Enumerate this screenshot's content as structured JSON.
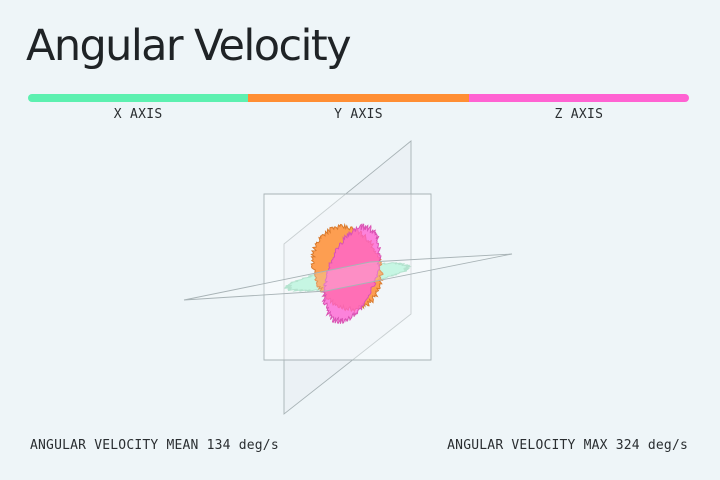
{
  "title": "Angular Velocity",
  "axes": [
    {
      "label": "X AXIS",
      "color": "#5cf0b0"
    },
    {
      "label": "Y AXIS",
      "color": "#ff8e34"
    },
    {
      "label": "Z AXIS",
      "color": "#ff62d2"
    }
  ],
  "stats": {
    "mean_label": "ANGULAR VELOCITY MEAN",
    "mean_value": "134",
    "mean_unit": "deg/s",
    "max_label": "ANGULAR VELOCITY MAX",
    "max_value": "324",
    "max_unit": "deg/s"
  }
}
